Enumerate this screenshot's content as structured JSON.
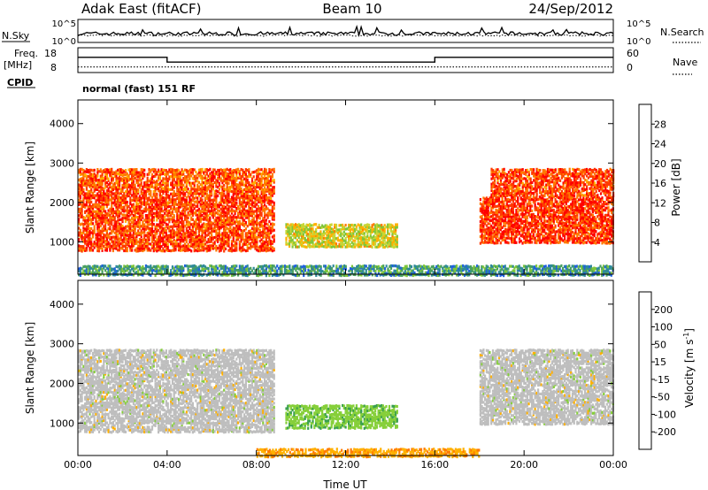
{
  "header": {
    "station": "Adak East (fitACF)",
    "beam": "Beam 10",
    "date": "24/Sep/2012"
  },
  "side_labels": {
    "nsky": "N.Sky",
    "nsearch": "N.Search",
    "freq": "Freq.",
    "freq_unit": "[MHz]",
    "cpid": "CPID",
    "nave": "Nave",
    "mode": "normal (fast) 151 RF"
  },
  "colors": {
    "frame": "#000000",
    "background": "#ffffff",
    "ground_scatter": "#bebebe"
  },
  "chart_data": [
    {
      "type": "line",
      "title": "N.Sky / N.Search",
      "y_left_ticks": [
        "10^5",
        "10^0"
      ],
      "y_right_ticks": [
        "10^5",
        "10^0"
      ],
      "series": [
        {
          "name": "N.Sky",
          "style": "solid",
          "level": 0.45
        },
        {
          "name": "N.Search",
          "style": "dotted",
          "level": 0.4
        }
      ]
    },
    {
      "type": "line",
      "title": "Freq / Nave",
      "y_left_ticks": [
        8,
        18
      ],
      "y_left_range": [
        5,
        20
      ],
      "y_right_ticks": [
        0,
        60
      ],
      "y_right_range": [
        -10,
        70
      ],
      "series": [
        {
          "name": "Freq.",
          "style": "solid",
          "x_hours": [
            0,
            4,
            4,
            16,
            16,
            24
          ],
          "y_mhz": [
            14.2,
            14.2,
            11.3,
            11.3,
            14.2,
            14.2
          ]
        },
        {
          "name": "Nave",
          "style": "dotted",
          "x_hours": [
            0,
            24
          ],
          "y": [
            8,
            8
          ]
        }
      ],
      "cpid_text": "normal (fast) 151 RF"
    },
    {
      "type": "heatmap",
      "quantity": "Power",
      "xlabel": "",
      "ylabel": "Slant Range [km]",
      "x_ticks": [
        "00:00",
        "04:00",
        "08:00",
        "12:00",
        "16:00",
        "20:00",
        "00:00"
      ],
      "x_range_hours": [
        0,
        24
      ],
      "y_ticks": [
        1000,
        2000,
        3000,
        4000
      ],
      "y_range_km": [
        180,
        4600
      ],
      "colorbar": {
        "label": "Power [dB]",
        "ticks": [
          4,
          8,
          12,
          16,
          20,
          24,
          28
        ],
        "range": [
          0,
          32
        ],
        "colors": [
          "#0000ff",
          "#1f5fe0",
          "#2f8a9a",
          "#4aa060",
          "#7fc63a",
          "#c8d636",
          "#ffb000",
          "#ff7a00",
          "#ff3a00",
          "#ff0000"
        ]
      },
      "echo_regions": [
        {
          "t_start": 0.0,
          "t_end": 8.8,
          "range_low": 800,
          "range_high": 2300,
          "db": 27
        },
        {
          "t_start": 0.0,
          "t_end": 8.8,
          "range_low": 2300,
          "range_high": 2900,
          "db": 26
        },
        {
          "t_start": 9.3,
          "t_end": 14.3,
          "range_low": 900,
          "range_high": 1500,
          "db": 18
        },
        {
          "t_start": 18.0,
          "t_end": 24.0,
          "range_low": 1000,
          "range_high": 2200,
          "db": 28
        },
        {
          "t_start": 18.5,
          "t_end": 24.0,
          "range_low": 2200,
          "range_high": 2900,
          "db": 27
        },
        {
          "t_start": 0.0,
          "t_end": 24.0,
          "range_low": 180,
          "range_high": 450,
          "db": 10
        }
      ]
    },
    {
      "type": "heatmap",
      "quantity": "Velocity",
      "xlabel": "Time UT",
      "ylabel": "Slant Range [km]",
      "x_ticks": [
        "00:00",
        "04:00",
        "08:00",
        "12:00",
        "16:00",
        "20:00",
        "00:00"
      ],
      "x_range_hours": [
        0,
        24
      ],
      "y_ticks": [
        1000,
        2000,
        3000,
        4000
      ],
      "y_range_km": [
        180,
        4600
      ],
      "colorbar": {
        "label": "Velocity [m s^-1]",
        "ticks": [
          200,
          100,
          50,
          15,
          -15,
          -50,
          -100,
          -200
        ],
        "colors": [
          "#1a2f9a",
          "#2e7a6e",
          "#3aa050",
          "#86cf3a",
          "#bebebe",
          "#ffb000",
          "#ff7a00",
          "#ff3000",
          "#ff0000"
        ]
      },
      "echo_regions": [
        {
          "t_start": 0.0,
          "t_end": 8.8,
          "range_low": 800,
          "range_high": 2900,
          "velocity": 0,
          "ground_scatter": true
        },
        {
          "t_start": 9.3,
          "t_end": 14.3,
          "range_low": 900,
          "range_high": 1500,
          "velocity": 60
        },
        {
          "t_start": 18.0,
          "t_end": 24.0,
          "range_low": 1000,
          "range_high": 2900,
          "velocity": 0,
          "ground_scatter": true
        },
        {
          "t_start": 8.0,
          "t_end": 18.0,
          "range_low": 180,
          "range_high": 400,
          "velocity": -60
        }
      ]
    }
  ]
}
